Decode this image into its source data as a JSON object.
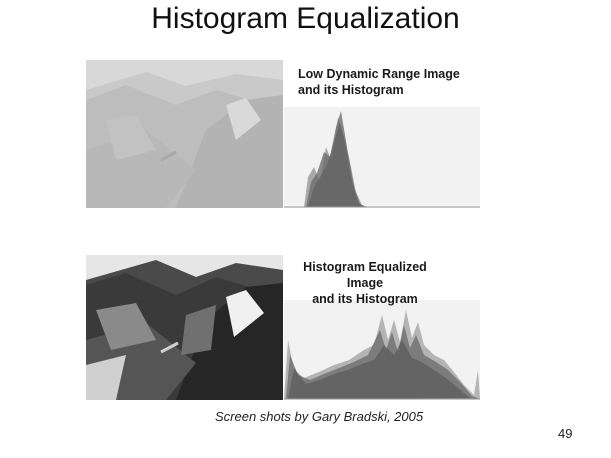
{
  "slide": {
    "title": "Histogram Equalization",
    "credit": "Screen shots by Gary Bradski, 2005",
    "page_number": "49"
  },
  "panels": {
    "low": {
      "caption_line1": "Low Dynamic Range Image",
      "caption_line2": "and its Histogram"
    },
    "equalized": {
      "caption_line1": "Histogram Equalized Image",
      "caption_line2": "and its Histogram"
    }
  },
  "colors": {
    "histogram_fill": "#6e6e6e",
    "histogram_bg": "#f2f2f2",
    "low_contrast_photo": "#c8c8c8",
    "equalized_photo": "#5a5a5a"
  }
}
